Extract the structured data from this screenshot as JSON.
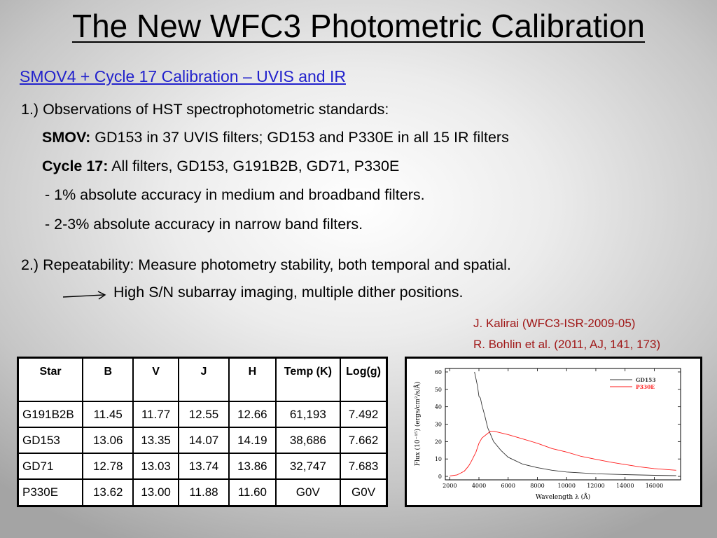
{
  "slide": {
    "title": "The New WFC3 Photometric Calibration",
    "subtitle": "SMOV4 + Cycle 17 Calibration – UVIS and IR",
    "item1": "1.) Observations of HST spectrophotometric standards:",
    "smov_label": "SMOV:",
    "smov_text": " GD153 in 37 UVIS filters; GD153 and P330E in all 15 IR filters",
    "cycle_label": "Cycle 17:",
    "cycle_text": " All filters, GD153, G191B2B, GD71, P330E",
    "bullet1": "- 1% absolute accuracy in medium and broadband filters.",
    "bullet2": "- 2-3% absolute accuracy in narrow band filters.",
    "item2": "2.) Repeatability: Measure photometry stability, both temporal and spatial.",
    "arrow_text": "High S/N subarray imaging, multiple dither positions.",
    "ref1": "J. Kalirai (WFC3-ISR-2009-05)",
    "ref2": "R. Bohlin et al. (2011, AJ, 141, 173)"
  },
  "table": {
    "headers": [
      "Star",
      "B",
      "V",
      "J",
      "H",
      "Temp (K)",
      "Log(g)"
    ],
    "rows": [
      [
        "G191B2B",
        "11.45",
        "11.77",
        "12.55",
        "12.66",
        "61,193",
        "7.492"
      ],
      [
        "GD153",
        "13.06",
        "13.35",
        "14.07",
        "14.19",
        "38,686",
        "7.662"
      ],
      [
        "GD71",
        "12.78",
        "13.03",
        "13.74",
        "13.86",
        "32,747",
        "7.683"
      ],
      [
        "P330E",
        "13.62",
        "13.00",
        "11.88",
        "11.60",
        "G0V",
        "G0V"
      ]
    ]
  },
  "colors": {
    "subtitle": "#2222cc",
    "reference": "#a01818",
    "gd153": "#333333",
    "p330e": "#ff1a1a"
  },
  "chart_data": {
    "type": "line",
    "xlabel": "Wavelength λ (Å)",
    "ylabel": "Flux (10⁻¹⁵) (ergs/cm²/s/Å)",
    "xlim": [
      1700,
      17800
    ],
    "ylim": [
      -2,
      62
    ],
    "xticks": [
      2000,
      4000,
      6000,
      8000,
      10000,
      12000,
      14000,
      16000
    ],
    "yticks": [
      0,
      10,
      20,
      30,
      40,
      50,
      60
    ],
    "legend_position": "top-right",
    "series": [
      {
        "name": "GD153",
        "color": "#333333",
        "x": [
          3700,
          3800,
          3900,
          4000,
          4100,
          4200,
          4400,
          4600,
          4800,
          5000,
          5500,
          6000,
          6500,
          7000,
          8000,
          9000,
          10000,
          12000,
          14000,
          16000,
          17500
        ],
        "y": [
          60,
          56,
          52,
          46,
          45,
          41,
          35,
          28,
          24,
          20,
          15,
          11,
          9,
          7,
          5,
          3.5,
          2.5,
          1.5,
          1.0,
          0.6,
          0.4
        ]
      },
      {
        "name": "P330E",
        "color": "#ff1a1a",
        "x": [
          2000,
          2500,
          3000,
          3300,
          3500,
          3800,
          4000,
          4200,
          4500,
          4800,
          5000,
          5500,
          6000,
          7000,
          8000,
          9000,
          10000,
          11000,
          12000,
          13000,
          14000,
          15000,
          16000,
          17500
        ],
        "y": [
          0.2,
          0.8,
          3,
          6,
          9,
          14,
          19,
          22,
          24,
          26,
          26,
          25,
          24,
          21.5,
          19,
          16,
          14,
          11.5,
          9.8,
          8.2,
          6.8,
          5.5,
          4.5,
          3.5
        ]
      }
    ]
  }
}
